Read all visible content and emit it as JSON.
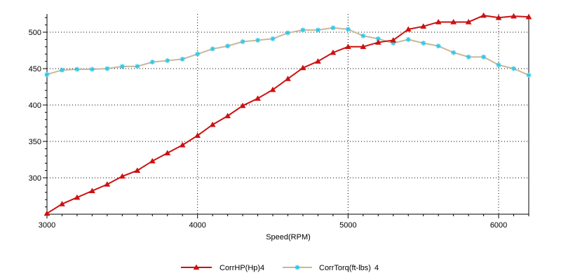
{
  "chart_data": {
    "type": "line",
    "xlabel": "Speed(RPM)",
    "ylabel": "",
    "xlim": [
      3000,
      6200
    ],
    "ylim": [
      250,
      525
    ],
    "xticks": [
      3000,
      4000,
      5000,
      6000
    ],
    "yticks": [
      300,
      350,
      400,
      450,
      500
    ],
    "grid": true,
    "legend_position": "bottom-center",
    "x": [
      3000,
      3100,
      3200,
      3300,
      3400,
      3500,
      3600,
      3700,
      3800,
      3900,
      4000,
      4100,
      4200,
      4300,
      4400,
      4500,
      4600,
      4700,
      4800,
      4900,
      5000,
      5100,
      5200,
      5300,
      5400,
      5500,
      5600,
      5700,
      5800,
      5900,
      6000,
      6100,
      6200
    ],
    "series": [
      {
        "name": "CorrHP(Hp)",
        "run": "4",
        "color": "#cc1111",
        "marker": "triangle",
        "values": [
          251,
          264,
          273,
          282,
          291,
          302,
          310,
          323,
          334,
          345,
          358,
          373,
          385,
          399,
          409,
          421,
          436,
          451,
          460,
          472,
          480,
          480,
          486,
          489,
          504,
          508,
          514,
          514,
          514,
          523,
          520,
          522,
          521
        ]
      },
      {
        "name": "CorrTorq(ft-lbs)",
        "run": "4",
        "color": "#c8b89a",
        "marker_color": "#33c8e8",
        "marker": "star",
        "values": [
          442,
          448,
          449,
          449,
          450,
          453,
          453,
          459,
          461,
          463,
          470,
          477,
          481,
          487,
          489,
          491,
          499,
          503,
          503,
          506,
          504,
          495,
          491,
          485,
          490,
          485,
          481,
          472,
          466,
          466,
          455,
          450,
          441
        ]
      }
    ]
  }
}
